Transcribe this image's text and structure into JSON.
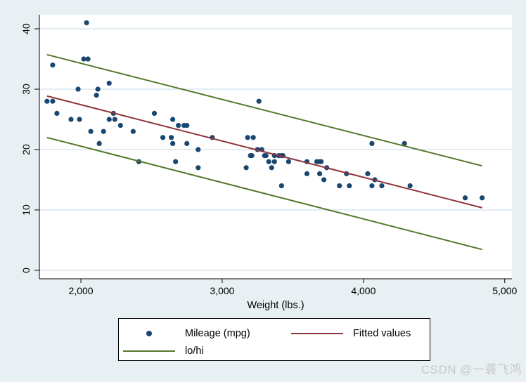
{
  "figure": {
    "background": "#e9f0f4",
    "plot_bg": "#ffffff",
    "grid_color": "#e2ecf3",
    "axis_color": "#000000",
    "text_color": "#000000"
  },
  "chart_data": {
    "type": "scatter",
    "title": "",
    "xlabel": "Weight (lbs.)",
    "ylabel": "",
    "xlim": [
      1706,
      5051
    ],
    "ylim": [
      -1.4,
      42.33
    ],
    "grid": "horizontal",
    "x_ticks": [
      {
        "value": 2000,
        "label": "2,000"
      },
      {
        "value": 3000,
        "label": "3,000"
      },
      {
        "value": 4000,
        "label": "4,000"
      },
      {
        "value": 5000,
        "label": "5,000"
      }
    ],
    "y_ticks": [
      {
        "value": 0,
        "label": "0"
      },
      {
        "value": 10,
        "label": "10"
      },
      {
        "value": 20,
        "label": "20"
      },
      {
        "value": 30,
        "label": "30"
      },
      {
        "value": 40,
        "label": "40"
      }
    ],
    "series": [
      {
        "id": "mileage-points",
        "name": "Mileage (mpg)",
        "type": "scatter",
        "color": "#1a476f",
        "marker_radius": 3.6,
        "points": [
          [
            2930,
            22
          ],
          [
            3350,
            17
          ],
          [
            2640,
            22
          ],
          [
            3250,
            20
          ],
          [
            4080,
            15
          ],
          [
            3670,
            18
          ],
          [
            2230,
            26
          ],
          [
            3280,
            20
          ],
          [
            3880,
            16
          ],
          [
            3400,
            19
          ],
          [
            4330,
            14
          ],
          [
            3900,
            14
          ],
          [
            4290,
            21
          ],
          [
            2110,
            29
          ],
          [
            3690,
            16
          ],
          [
            3180,
            22
          ],
          [
            3220,
            22
          ],
          [
            2750,
            24
          ],
          [
            3430,
            19
          ],
          [
            2120,
            30
          ],
          [
            3600,
            18
          ],
          [
            3600,
            16
          ],
          [
            3740,
            17
          ],
          [
            1800,
            28
          ],
          [
            2650,
            21
          ],
          [
            4840,
            12
          ],
          [
            4720,
            12
          ],
          [
            3830,
            14
          ],
          [
            2580,
            22
          ],
          [
            4060,
            14
          ],
          [
            3720,
            15
          ],
          [
            3370,
            18
          ],
          [
            4130,
            14
          ],
          [
            2830,
            20
          ],
          [
            4060,
            21
          ],
          [
            3300,
            19
          ],
          [
            3310,
            19
          ],
          [
            3690,
            18
          ],
          [
            3370,
            19
          ],
          [
            2730,
            24
          ],
          [
            4030,
            16
          ],
          [
            3260,
            28
          ],
          [
            1800,
            34
          ],
          [
            2200,
            25
          ],
          [
            2520,
            26
          ],
          [
            3330,
            18
          ],
          [
            3700,
            18
          ],
          [
            3470,
            18
          ],
          [
            3210,
            19
          ],
          [
            3200,
            19
          ],
          [
            3420,
            19
          ],
          [
            2690,
            24
          ],
          [
            2830,
            17
          ],
          [
            2070,
            23
          ],
          [
            2650,
            25
          ],
          [
            2370,
            23
          ],
          [
            2020,
            35
          ],
          [
            2280,
            24
          ],
          [
            2750,
            21
          ],
          [
            2130,
            21
          ],
          [
            2240,
            25
          ],
          [
            1760,
            28
          ],
          [
            1980,
            30
          ],
          [
            3420,
            14
          ],
          [
            1830,
            26
          ],
          [
            2050,
            35
          ],
          [
            2410,
            18
          ],
          [
            2200,
            31
          ],
          [
            2670,
            18
          ],
          [
            2160,
            23
          ],
          [
            2040,
            41
          ],
          [
            1930,
            25
          ],
          [
            1990,
            25
          ],
          [
            3170,
            17
          ]
        ]
      },
      {
        "id": "fitted-line",
        "name": "Fitted values",
        "type": "line",
        "color": "#90353b",
        "points": [
          [
            1760,
            28.87
          ],
          [
            4840,
            10.36
          ]
        ]
      },
      {
        "id": "lo-line",
        "name": "lo",
        "type": "line",
        "color": "#55782a",
        "points": [
          [
            1760,
            22.0
          ],
          [
            4840,
            3.45
          ]
        ]
      },
      {
        "id": "hi-line",
        "name": "hi",
        "type": "line",
        "color": "#55782a",
        "points": [
          [
            1760,
            35.72
          ],
          [
            4840,
            17.3
          ]
        ]
      }
    ],
    "legend": {
      "position": "bottom-center",
      "entries": [
        {
          "label": "Mileage (mpg)",
          "marker": "dot",
          "color": "#1a476f"
        },
        {
          "label": "Fitted values",
          "marker": "line",
          "color": "#90353b"
        },
        {
          "label": "lo/hi",
          "marker": "line",
          "color": "#55782a"
        }
      ]
    }
  },
  "watermark": {
    "text": "CSDN @一蓑飞鸿",
    "color": "#c8c8c8"
  }
}
